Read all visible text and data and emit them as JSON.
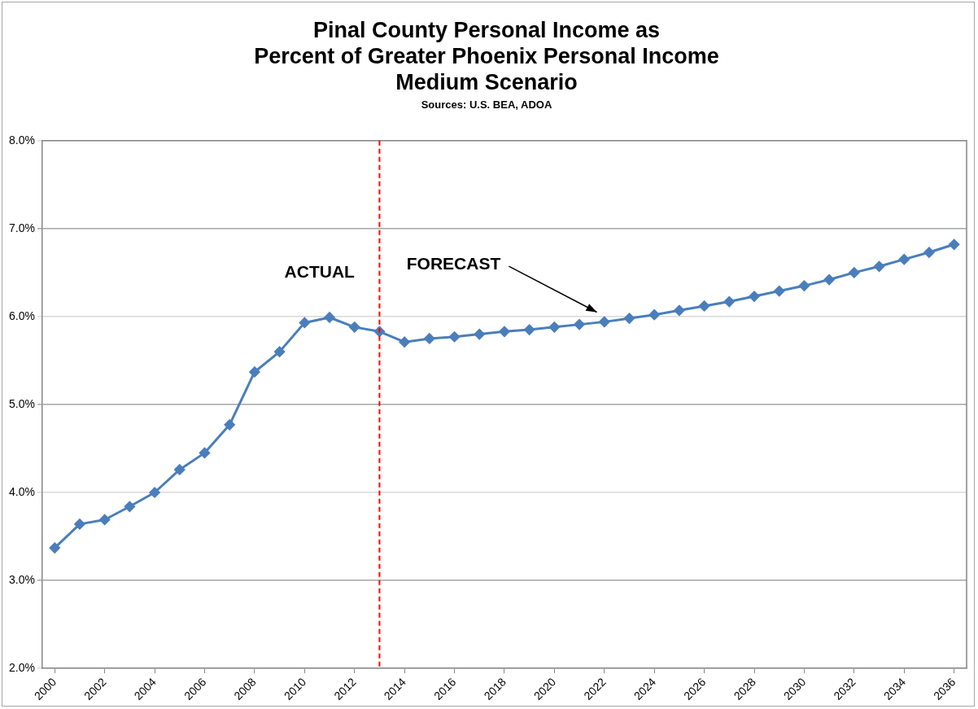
{
  "chart_data": {
    "type": "line",
    "title": "Pinal County Personal Income as\nPercent of Greater Phoenix Personal Income\nMedium Scenario",
    "subtitle": "Sources: U.S. BEA, ADOA",
    "x": [
      2000,
      2001,
      2002,
      2003,
      2004,
      2005,
      2006,
      2007,
      2008,
      2009,
      2010,
      2011,
      2012,
      2013,
      2014,
      2015,
      2016,
      2017,
      2018,
      2019,
      2020,
      2021,
      2022,
      2023,
      2024,
      2025,
      2026,
      2027,
      2028,
      2029,
      2030,
      2031,
      2032,
      2033,
      2034,
      2035,
      2036
    ],
    "xlim": [
      1999.5,
      2036.5
    ],
    "xticks": [
      2000,
      2002,
      2004,
      2006,
      2008,
      2010,
      2012,
      2014,
      2016,
      2018,
      2020,
      2022,
      2024,
      2026,
      2028,
      2030,
      2032,
      2034,
      2036
    ],
    "series": [
      {
        "color": "#4a7ebb",
        "values": [
          3.37,
          3.64,
          3.69,
          3.84,
          4.0,
          4.26,
          4.45,
          4.77,
          5.37,
          5.6,
          5.93,
          5.99,
          5.88,
          5.83,
          5.71,
          5.75,
          5.77,
          5.8,
          5.83,
          5.85,
          5.88,
          5.91,
          5.94,
          5.98,
          6.02,
          6.07,
          6.12,
          6.17,
          6.23,
          6.29,
          6.35,
          6.42,
          6.5,
          6.57,
          6.65,
          6.73,
          6.82
        ]
      }
    ],
    "ylim": [
      2,
      8
    ],
    "yticks": [
      {
        "value": 2,
        "label": "2.0%"
      },
      {
        "value": 3,
        "label": "3.0%"
      },
      {
        "value": 4,
        "label": "4.0%"
      },
      {
        "value": 5,
        "label": "5.0%"
      },
      {
        "value": 6,
        "label": "6.0%"
      },
      {
        "value": 7,
        "label": "7.0%"
      },
      {
        "value": 8,
        "label": "8.0%"
      }
    ],
    "ref_lines": [
      {
        "axis": "x",
        "value": 2013,
        "color": "#ff0000",
        "line_style": "dashed"
      }
    ],
    "annotations": [
      "ACTUAL",
      "FORECAST"
    ],
    "grid": "y",
    "legend": false,
    "marker": "diamond",
    "line_style": "solid"
  }
}
